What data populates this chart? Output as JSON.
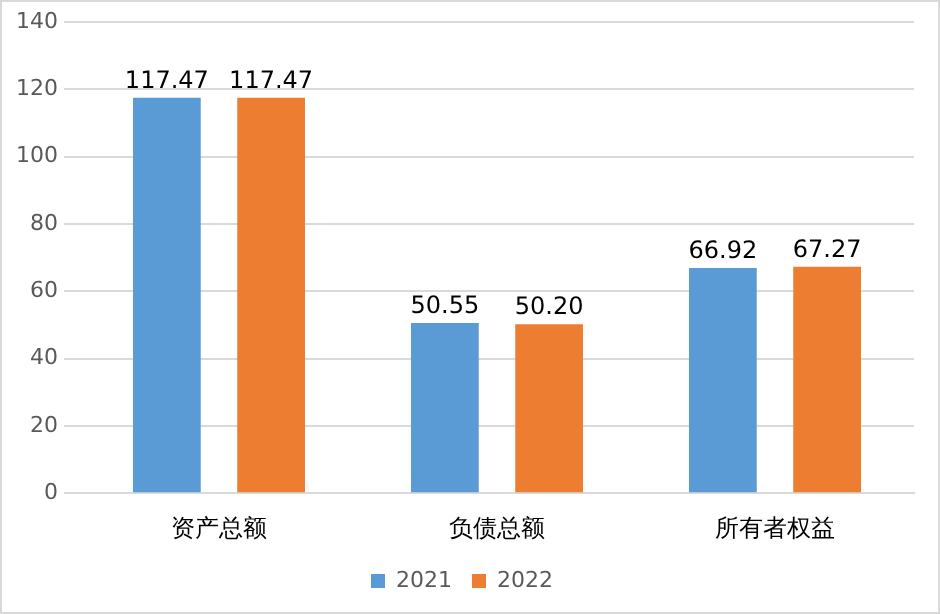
{
  "chart_data": {
    "type": "bar",
    "categories": [
      "资产总额",
      "负债总额",
      "所有者权益"
    ],
    "series": [
      {
        "name": "2021",
        "color": "#5b9bd5",
        "values": [
          117.47,
          50.55,
          66.92
        ],
        "value_labels": [
          "117.47",
          "50.55",
          "66.92"
        ]
      },
      {
        "name": "2022",
        "color": "#ed7d31",
        "values": [
          117.47,
          50.2,
          67.27
        ],
        "value_labels": [
          "117.47",
          "50.20",
          "67.27"
        ]
      }
    ],
    "ylim": [
      0,
      140
    ],
    "yticks": [
      0,
      20,
      40,
      60,
      80,
      100,
      120,
      140
    ],
    "grid": "y",
    "legend": "bottom"
  }
}
